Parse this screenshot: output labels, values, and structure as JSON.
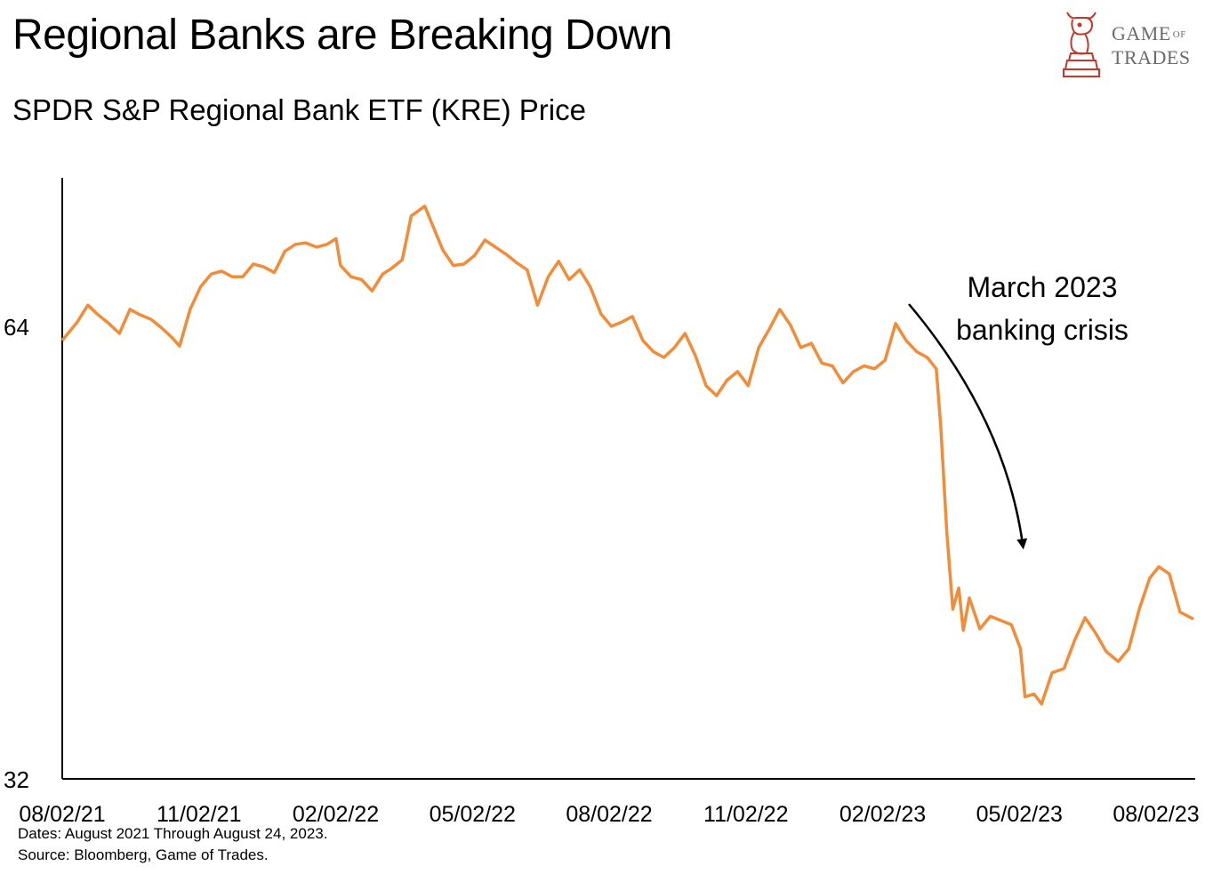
{
  "header": {
    "title": "Regional Banks are Breaking Down",
    "subtitle": "SPDR S&P Regional Bank ETF (KRE) Price"
  },
  "logo": {
    "line1_a": "Game",
    "line1_of": "of",
    "line2": "Trades",
    "icon": "bull-knight-chess-icon",
    "color": "#c0392b"
  },
  "footnotes": {
    "dates": "Dates: August 2021 Through August 24, 2023.",
    "source": "Source: Bloomberg, Game of Trades."
  },
  "chart_data": {
    "type": "line",
    "ylim": [
      32,
      74.5
    ],
    "y_ticks": [
      "64",
      "32"
    ],
    "x_tick_labels": [
      "08/02/21",
      "11/02/21",
      "02/02/22",
      "05/02/22",
      "08/02/22",
      "11/02/22",
      "02/02/23",
      "05/02/23",
      "08/02/23"
    ],
    "annotation": {
      "line1": "March 2023",
      "line2": "banking crisis"
    },
    "series": [
      {
        "color": "#f28c38",
        "points": [
          [
            "2021-08-02",
            63.0
          ],
          [
            "2021-08-12",
            64.3
          ],
          [
            "2021-08-19",
            65.5
          ],
          [
            "2021-08-26",
            64.8
          ],
          [
            "2021-09-02",
            64.2
          ],
          [
            "2021-09-09",
            63.5
          ],
          [
            "2021-09-16",
            65.2
          ],
          [
            "2021-09-23",
            64.8
          ],
          [
            "2021-09-30",
            64.5
          ],
          [
            "2021-10-07",
            63.9
          ],
          [
            "2021-10-14",
            63.2
          ],
          [
            "2021-10-19",
            62.6
          ],
          [
            "2021-10-26",
            65.2
          ],
          [
            "2021-11-02",
            66.8
          ],
          [
            "2021-11-09",
            67.7
          ],
          [
            "2021-11-16",
            67.9
          ],
          [
            "2021-11-23",
            67.5
          ],
          [
            "2021-11-30",
            67.5
          ],
          [
            "2021-12-07",
            68.4
          ],
          [
            "2021-12-14",
            68.2
          ],
          [
            "2021-12-21",
            67.8
          ],
          [
            "2021-12-28",
            69.3
          ],
          [
            "2022-01-04",
            69.8
          ],
          [
            "2022-01-11",
            69.9
          ],
          [
            "2022-01-18",
            69.6
          ],
          [
            "2022-01-25",
            69.8
          ],
          [
            "2022-01-31",
            70.2
          ],
          [
            "2022-02-03",
            68.3
          ],
          [
            "2022-02-10",
            67.5
          ],
          [
            "2022-02-17",
            67.3
          ],
          [
            "2022-02-24",
            66.5
          ],
          [
            "2022-03-03",
            67.7
          ],
          [
            "2022-03-09",
            68.1
          ],
          [
            "2022-03-16",
            68.7
          ],
          [
            "2022-03-22",
            71.8
          ],
          [
            "2022-03-31",
            72.5
          ],
          [
            "2022-04-05",
            71.2
          ],
          [
            "2022-04-12",
            69.4
          ],
          [
            "2022-04-19",
            68.3
          ],
          [
            "2022-04-26",
            68.4
          ],
          [
            "2022-05-03",
            69.0
          ],
          [
            "2022-05-10",
            70.1
          ],
          [
            "2022-05-17",
            69.6
          ],
          [
            "2022-05-24",
            69.1
          ],
          [
            "2022-05-31",
            68.5
          ],
          [
            "2022-06-07",
            68.0
          ],
          [
            "2022-06-14",
            65.5
          ],
          [
            "2022-06-21",
            67.5
          ],
          [
            "2022-06-28",
            68.6
          ],
          [
            "2022-07-05",
            67.3
          ],
          [
            "2022-07-12",
            68.0
          ],
          [
            "2022-07-19",
            66.8
          ],
          [
            "2022-07-26",
            64.9
          ],
          [
            "2022-08-02",
            64.0
          ],
          [
            "2022-08-09",
            64.3
          ],
          [
            "2022-08-16",
            64.7
          ],
          [
            "2022-08-23",
            63.0
          ],
          [
            "2022-08-30",
            62.2
          ],
          [
            "2022-09-06",
            61.8
          ],
          [
            "2022-09-13",
            62.5
          ],
          [
            "2022-09-20",
            63.5
          ],
          [
            "2022-09-27",
            61.9
          ],
          [
            "2022-10-04",
            59.8
          ],
          [
            "2022-10-11",
            59.1
          ],
          [
            "2022-10-18",
            60.2
          ],
          [
            "2022-10-25",
            60.8
          ],
          [
            "2022-11-01",
            59.8
          ],
          [
            "2022-11-08",
            62.5
          ],
          [
            "2022-11-15",
            63.8
          ],
          [
            "2022-11-22",
            65.2
          ],
          [
            "2022-11-29",
            64.1
          ],
          [
            "2022-12-06",
            62.5
          ],
          [
            "2022-12-13",
            62.8
          ],
          [
            "2022-12-20",
            61.4
          ],
          [
            "2022-12-27",
            61.2
          ],
          [
            "2023-01-03",
            60.0
          ],
          [
            "2023-01-10",
            60.8
          ],
          [
            "2023-01-17",
            61.2
          ],
          [
            "2023-01-24",
            61.0
          ],
          [
            "2023-01-31",
            61.6
          ],
          [
            "2023-02-07",
            64.2
          ],
          [
            "2023-02-14",
            63.0
          ],
          [
            "2023-02-21",
            62.2
          ],
          [
            "2023-02-28",
            61.8
          ],
          [
            "2023-03-06",
            61.0
          ],
          [
            "2023-03-09",
            57.0
          ],
          [
            "2023-03-13",
            49.5
          ],
          [
            "2023-03-17",
            44.0
          ],
          [
            "2023-03-21",
            45.5
          ],
          [
            "2023-03-24",
            42.5
          ],
          [
            "2023-03-28",
            44.8
          ],
          [
            "2023-04-04",
            42.6
          ],
          [
            "2023-04-11",
            43.5
          ],
          [
            "2023-04-18",
            43.2
          ],
          [
            "2023-04-25",
            42.9
          ],
          [
            "2023-05-01",
            41.2
          ],
          [
            "2023-05-04",
            37.8
          ],
          [
            "2023-05-10",
            38.0
          ],
          [
            "2023-05-15",
            37.3
          ],
          [
            "2023-05-22",
            39.5
          ],
          [
            "2023-05-30",
            39.8
          ],
          [
            "2023-06-06",
            41.8
          ],
          [
            "2023-06-13",
            43.4
          ],
          [
            "2023-06-20",
            42.3
          ],
          [
            "2023-06-27",
            41.0
          ],
          [
            "2023-07-05",
            40.3
          ],
          [
            "2023-07-12",
            41.2
          ],
          [
            "2023-07-19",
            44.0
          ],
          [
            "2023-07-26",
            46.2
          ],
          [
            "2023-08-01",
            47.0
          ],
          [
            "2023-08-08",
            46.5
          ],
          [
            "2023-08-15",
            43.8
          ],
          [
            "2023-08-24",
            43.3
          ]
        ]
      }
    ]
  }
}
